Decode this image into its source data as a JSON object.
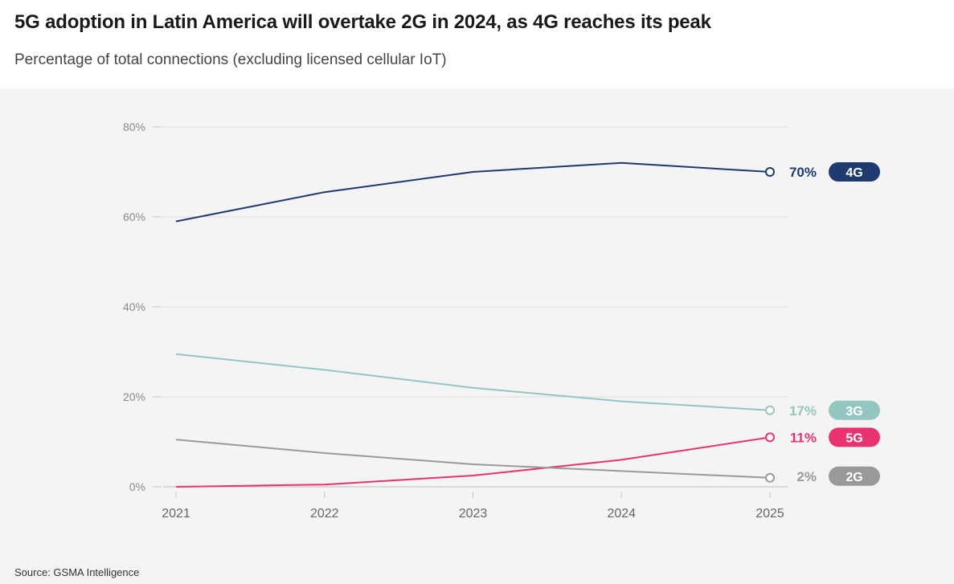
{
  "title": "5G adoption in Latin America will overtake 2G in 2024, as 4G reaches its peak",
  "subtitle": "Percentage of total connections (excluding licensed cellular IoT)",
  "source": "Source: GSMA Intelligence",
  "chart_data": {
    "type": "line",
    "title": "5G adoption in Latin America will overtake 2G in 2024, as 4G reaches its peak",
    "subtitle": "Percentage of total connections (excluding licensed cellular IoT)",
    "x": [
      "2021",
      "2022",
      "2023",
      "2024",
      "2025"
    ],
    "ylim": [
      0,
      80
    ],
    "yticks": [
      0,
      20,
      40,
      60,
      80
    ],
    "ytick_labels": [
      "0%",
      "20%",
      "40%",
      "60%",
      "80%"
    ],
    "grid": true,
    "legend": "end-of-line labels",
    "series": [
      {
        "name": "4G",
        "color": "#1f3a6e",
        "values": [
          59,
          65.5,
          70,
          72,
          70
        ],
        "end_label": "70%"
      },
      {
        "name": "3G",
        "color": "#94c6c1",
        "values": [
          29.5,
          26,
          22,
          19,
          17
        ],
        "end_label": "17%"
      },
      {
        "name": "5G",
        "color": "#e8336f",
        "values": [
          0,
          0.5,
          2.5,
          6,
          11
        ],
        "end_label": "11%"
      },
      {
        "name": "2G",
        "color": "#999999",
        "values": [
          10.5,
          7.5,
          5,
          3.5,
          2
        ],
        "end_label": "2%"
      }
    ]
  }
}
